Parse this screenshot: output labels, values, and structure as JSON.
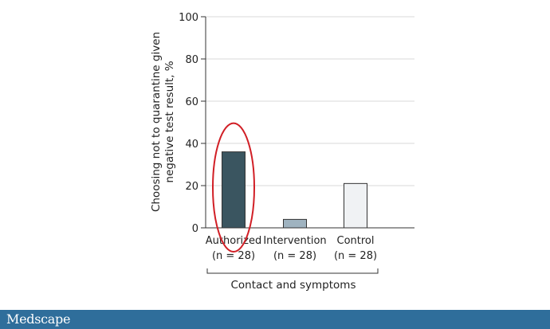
{
  "chart_data": {
    "type": "bar",
    "ylabel_lines": [
      "Choosing not to quarantine given",
      "negative test result, %"
    ],
    "ylim": [
      0,
      100
    ],
    "yticks": [
      "0",
      "20",
      "40",
      "60",
      "80",
      "100"
    ],
    "grid": true,
    "categories": [
      {
        "name": "Authorized",
        "n": "(n = 28)",
        "value": 36,
        "color": "#3a5560"
      },
      {
        "name": "Intervention",
        "n": "(n = 28)",
        "value": 4,
        "color": "#9fb3c0"
      },
      {
        "name": "Control",
        "n": "(n = 28)",
        "value": 21,
        "color": "#f0f2f4"
      }
    ],
    "group_label": "Contact and symptoms",
    "highlight": {
      "category": "Authorized",
      "color": "#d11f26"
    }
  },
  "footer": {
    "logo": "Medscape",
    "bar_color": "#2f6e9b"
  }
}
